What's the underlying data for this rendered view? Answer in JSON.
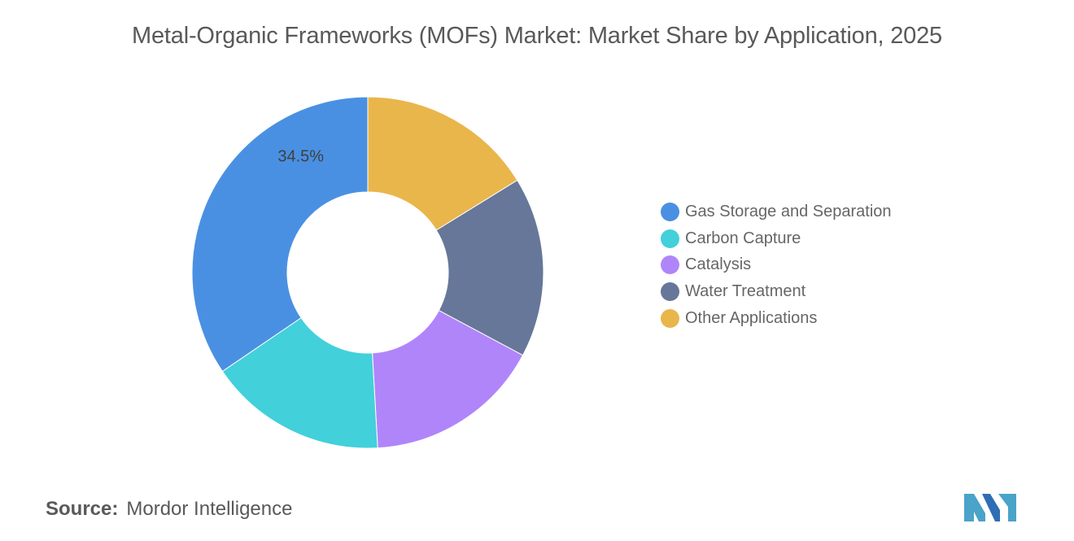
{
  "title": "Metal-Organic Frameworks (MOFs) Market: Market Share by Application, 2025",
  "chart_data": {
    "type": "pie",
    "donut": true,
    "title": "Metal-Organic Frameworks (MOFs) Market: Market Share by Application, 2025",
    "categories": [
      "Gas Storage and Separation",
      "Water Treatment",
      "Other Applications",
      "Carbon Capture",
      "Catalysis"
    ],
    "slices": [
      {
        "name": "Gas Storage and Separation",
        "value": 34.5,
        "color": "#4a90e2",
        "label": "34.5%"
      },
      {
        "name": "Carbon Capture",
        "value": 16.4,
        "color": "#42d0db",
        "label": ""
      },
      {
        "name": "Catalysis",
        "value": 16.3,
        "color": "#b085fa",
        "label": ""
      },
      {
        "name": "Water Treatment",
        "value": 16.6,
        "color": "#667799",
        "label": ""
      },
      {
        "name": "Other Applications",
        "value": 16.2,
        "color": "#e9b64c",
        "label": ""
      }
    ],
    "legend_position": "right"
  },
  "legend": [
    {
      "label": "Gas Storage and Separation",
      "color": "#4a90e2"
    },
    {
      "label": "Carbon Capture",
      "color": "#42d0db"
    },
    {
      "label": "Catalysis",
      "color": "#b085fa"
    },
    {
      "label": "Water Treatment",
      "color": "#667799"
    },
    {
      "label": "Other Applications",
      "color": "#e9b64c"
    }
  ],
  "source": {
    "key": "Source:",
    "value": "Mordor Intelligence"
  },
  "logo_colors": {
    "left": "#4aa3c9",
    "right": "#2f6db5"
  }
}
